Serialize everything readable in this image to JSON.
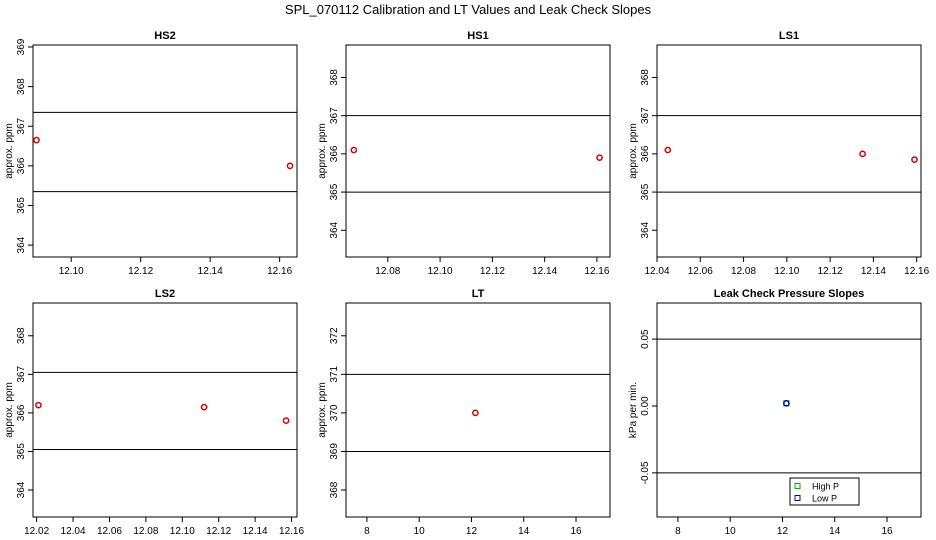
{
  "figure": {
    "title": "SPL_070112  Calibration and LT Values and Leak Check Slopes"
  },
  "colors": {
    "high_p_marker": "#d40000",
    "low_p_marker": "#0000cc",
    "high_p_legend": "#00b000",
    "low_p_legend": "#0000cc",
    "frame": "#000000",
    "limit_line": "#000000"
  },
  "chart_data": [
    {
      "id": "hs2",
      "type": "scatter",
      "title": "HS2",
      "ylabel": "approx. ppm",
      "xlim": [
        12.089,
        12.165
      ],
      "ylim": [
        363.7,
        369.05
      ],
      "xticks": [
        12.1,
        12.12,
        12.14,
        12.16
      ],
      "xtick_labels": [
        "12.10",
        "12.12",
        "12.14",
        "12.16"
      ],
      "yticks": [
        364,
        365,
        366,
        367,
        368,
        369
      ],
      "ytick_labels": [
        "364",
        "365",
        "366",
        "367",
        "368",
        "369"
      ],
      "hlines": [
        367.35,
        365.35
      ],
      "series": [
        {
          "marker": "circle",
          "color": "#d40000",
          "points": [
            {
              "x": 12.09,
              "y": 366.65
            },
            {
              "x": 12.163,
              "y": 366.0
            }
          ]
        }
      ]
    },
    {
      "id": "hs1",
      "type": "scatter",
      "title": "HS1",
      "ylabel": "approx. ppm",
      "xlim": [
        12.064,
        12.165
      ],
      "ylim": [
        363.3,
        368.85
      ],
      "xticks": [
        12.08,
        12.1,
        12.12,
        12.14,
        12.16
      ],
      "xtick_labels": [
        "12.08",
        "12.10",
        "12.12",
        "12.14",
        "12.16"
      ],
      "yticks": [
        364,
        365,
        366,
        367,
        368
      ],
      "ytick_labels": [
        "364",
        "365",
        "366",
        "367",
        "368"
      ],
      "hlines": [
        367.0,
        365.0
      ],
      "series": [
        {
          "marker": "circle",
          "color": "#d40000",
          "points": [
            {
              "x": 12.067,
              "y": 366.1
            },
            {
              "x": 12.161,
              "y": 365.9
            }
          ]
        }
      ]
    },
    {
      "id": "ls1",
      "type": "scatter",
      "title": "LS1",
      "ylabel": "approx. ppm",
      "xlim": [
        12.04,
        12.162
      ],
      "ylim": [
        363.3,
        368.85
      ],
      "xticks": [
        12.04,
        12.06,
        12.08,
        12.1,
        12.12,
        12.14,
        12.16
      ],
      "xtick_labels": [
        "12.04",
        "12.06",
        "12.08",
        "12.10",
        "12.12",
        "12.14",
        "12.16"
      ],
      "yticks": [
        364,
        365,
        366,
        367,
        368
      ],
      "ytick_labels": [
        "364",
        "365",
        "366",
        "367",
        "368"
      ],
      "hlines": [
        367.0,
        365.0
      ],
      "series": [
        {
          "marker": "circle",
          "color": "#d40000",
          "points": [
            {
              "x": 12.045,
              "y": 366.1
            },
            {
              "x": 12.135,
              "y": 366.0
            },
            {
              "x": 12.159,
              "y": 365.85
            }
          ]
        }
      ]
    },
    {
      "id": "ls2",
      "type": "scatter",
      "title": "LS2",
      "ylabel": "approx. ppm",
      "xlim": [
        12.018,
        12.163
      ],
      "ylim": [
        363.3,
        368.85
      ],
      "xticks": [
        12.02,
        12.04,
        12.06,
        12.08,
        12.1,
        12.12,
        12.14,
        12.16
      ],
      "xtick_labels": [
        "12.02",
        "12.04",
        "12.06",
        "12.08",
        "12.10",
        "12.12",
        "12.14",
        "12.16"
      ],
      "yticks": [
        364,
        365,
        366,
        367,
        368
      ],
      "ytick_labels": [
        "364",
        "365",
        "366",
        "367",
        "368"
      ],
      "hlines": [
        367.05,
        365.05
      ],
      "series": [
        {
          "marker": "circle",
          "color": "#d40000",
          "points": [
            {
              "x": 12.021,
              "y": 366.2
            },
            {
              "x": 12.112,
              "y": 366.15
            },
            {
              "x": 12.157,
              "y": 365.8
            }
          ]
        }
      ]
    },
    {
      "id": "lt",
      "type": "scatter",
      "title": "LT",
      "ylabel": "approx. ppm",
      "xlim": [
        7.2,
        17.3
      ],
      "ylim": [
        367.3,
        372.85
      ],
      "xticks": [
        8,
        10,
        12,
        14,
        16
      ],
      "xtick_labels": [
        "8",
        "10",
        "12",
        "14",
        "16"
      ],
      "yticks": [
        368,
        369,
        370,
        371,
        372
      ],
      "ytick_labels": [
        "368",
        "369",
        "370",
        "371",
        "372"
      ],
      "hlines": [
        371.0,
        369.0
      ],
      "series": [
        {
          "marker": "circle",
          "color": "#d40000",
          "points": [
            {
              "x": 12.15,
              "y": 370.0
            }
          ]
        }
      ]
    },
    {
      "id": "leak",
      "type": "scatter",
      "title": "Leak Check Pressure Slopes",
      "ylabel": "kPa per min.",
      "xlim": [
        7.2,
        17.3
      ],
      "ylim": [
        -0.083,
        0.077
      ],
      "xticks": [
        8,
        10,
        12,
        14,
        16
      ],
      "xtick_labels": [
        "8",
        "10",
        "12",
        "14",
        "16"
      ],
      "yticks": [
        -0.05,
        0.0,
        0.05
      ],
      "ytick_labels": [
        "-0.05",
        "0.00",
        "0.05"
      ],
      "hlines": [
        0.05,
        -0.05
      ],
      "series": [
        {
          "name": "High P",
          "marker": "square",
          "color": "#00b000",
          "points": [
            {
              "x": 12.15,
              "y": 0.002
            }
          ]
        },
        {
          "name": "Low P",
          "marker": "circle",
          "color": "#0000cc",
          "points": [
            {
              "x": 12.15,
              "y": 0.002
            }
          ]
        }
      ],
      "legend": {
        "position": "bottom-center",
        "entries": [
          "High P",
          "Low P"
        ]
      }
    }
  ]
}
